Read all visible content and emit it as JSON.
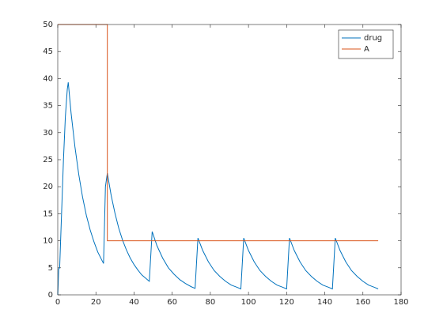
{
  "chart_data": {
    "type": "line",
    "xlim": [
      0,
      180
    ],
    "xticks": [
      0,
      20,
      40,
      60,
      80,
      100,
      120,
      140,
      160,
      180
    ],
    "ylim": [
      0,
      50
    ],
    "yticks": [
      0,
      5,
      10,
      15,
      20,
      25,
      30,
      35,
      40,
      45,
      50
    ],
    "grid": false,
    "legend": "top-right",
    "series": [
      {
        "name": "drug",
        "color": "#0072bd",
        "x": [
          0,
          0.5,
          1,
          2,
          3,
          4,
          5,
          5.5,
          7,
          9,
          11,
          13,
          15,
          17,
          19,
          21,
          23,
          24,
          25,
          26,
          28,
          30,
          32,
          34,
          36,
          38,
          40,
          42,
          44,
          46,
          48,
          49.5,
          52,
          55,
          58,
          61,
          64,
          67,
          70,
          72,
          73.5,
          76,
          79,
          82,
          85,
          88,
          91,
          94,
          96,
          97.5,
          100,
          103,
          106,
          109,
          112,
          115,
          118,
          120,
          121.5,
          124,
          127,
          130,
          133,
          136,
          139,
          142,
          144,
          145.5,
          148,
          151,
          154,
          157,
          160,
          163,
          166,
          168
        ],
        "values": [
          0,
          4.8,
          5,
          15,
          25,
          33,
          38,
          39.3,
          33.6,
          27.4,
          22.3,
          18.1,
          14.7,
          12.0,
          9.8,
          7.9,
          6.5,
          5.8,
          20,
          22.5,
          18.4,
          15.1,
          12.3,
          10.1,
          8.3,
          6.8,
          5.6,
          4.6,
          3.7,
          3.1,
          2.5,
          11.7,
          9.1,
          6.8,
          5.0,
          3.8,
          2.8,
          2.1,
          1.5,
          1.2,
          10.5,
          8.2,
          6.1,
          4.5,
          3.4,
          2.5,
          1.8,
          1.4,
          1.1,
          10.5,
          8.2,
          6.1,
          4.5,
          3.4,
          2.5,
          1.8,
          1.4,
          1.1,
          10.5,
          8.2,
          6.1,
          4.5,
          3.4,
          2.5,
          1.8,
          1.4,
          1.1,
          10.5,
          8.2,
          6.1,
          4.5,
          3.4,
          2.5,
          1.8,
          1.4,
          1.1
        ]
      },
      {
        "name": "A",
        "color": "#d95319",
        "x": [
          0,
          26,
          26,
          168
        ],
        "values": [
          50,
          50,
          10,
          10
        ]
      }
    ]
  }
}
